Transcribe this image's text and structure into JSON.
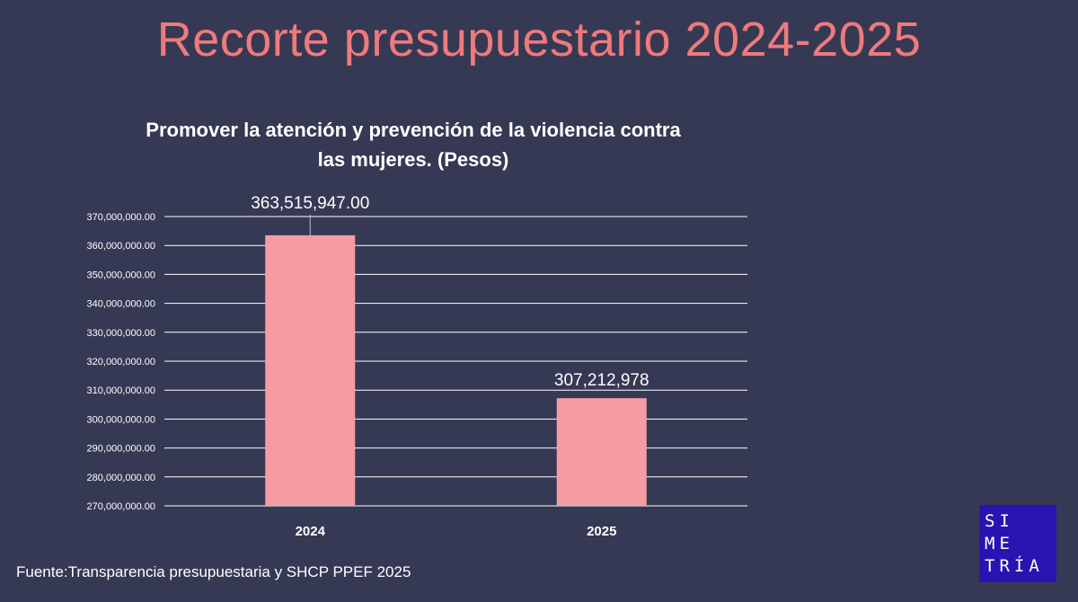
{
  "slide": {
    "title": "Recorte presupuestario 2024-2025",
    "source": "Fuente:Transparencia presupuestaria y SHCP PPEF 2025",
    "logo_lines": [
      "SI",
      "ME",
      "TRÍA"
    ],
    "logo_color": "#2914b2",
    "title_color": "#ef7a7c",
    "background": "#363954"
  },
  "chart_data": {
    "type": "bar",
    "title": "Promover la atención y prevención de la violencia contra las mujeres. (Pesos)",
    "categories": [
      "2024",
      "2025"
    ],
    "values": [
      363515947,
      307212978
    ],
    "data_labels": [
      "363,515,947.00",
      "307,212,978"
    ],
    "ylim": [
      270000000,
      370000000
    ],
    "ytick_step": 10000000,
    "y_tick_labels": [
      "370,000,000.00",
      "360,000,000.00",
      "350,000,000.00",
      "340,000,000.00",
      "330,000,000.00",
      "320,000,000.00",
      "310,000,000.00",
      "300,000,000.00",
      "290,000,000.00",
      "280,000,000.00",
      "270,000,000.00"
    ],
    "grid": true,
    "bar_color": "#f59ca3",
    "xlabel": "",
    "ylabel": ""
  }
}
